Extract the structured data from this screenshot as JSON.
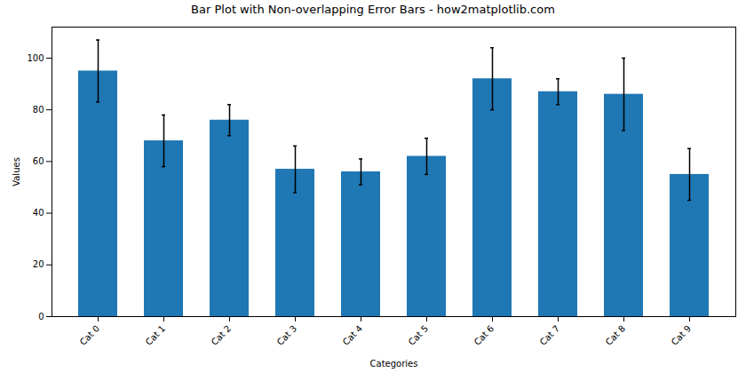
{
  "chart_data": {
    "type": "bar",
    "title": "Bar Plot with Non-overlapping Error Bars - how2matplotlib.com",
    "x_label": "Categories",
    "y_label": "Values",
    "categories": [
      "Cat 0",
      "Cat 1",
      "Cat 2",
      "Cat 3",
      "Cat 4",
      "Cat 5",
      "Cat 6",
      "Cat 7",
      "Cat 8",
      "Cat 9"
    ],
    "values": [
      95,
      68,
      76,
      57,
      56,
      62,
      92,
      87,
      86,
      55
    ],
    "errors": [
      12,
      10,
      6,
      9,
      5,
      7,
      12,
      5,
      14,
      10
    ],
    "color": "#1f77b4",
    "ylim": [
      0,
      112
    ],
    "yticks": [
      0,
      20,
      40,
      60,
      80,
      100
    ],
    "grid": false
  }
}
